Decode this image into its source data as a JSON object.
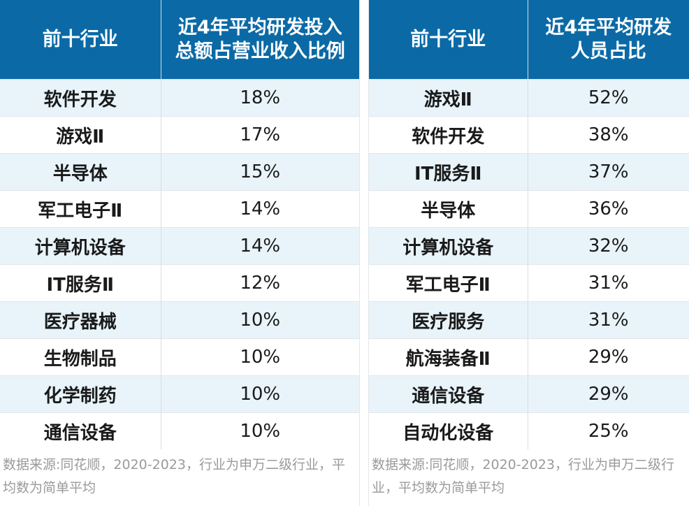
{
  "left_table": {
    "header_col1": "前十行业",
    "header_col2_line1": "近4年平均研发投入",
    "header_col2_line2": "总额占营业收入比例",
    "rows": [
      {
        "industry": "软件开发",
        "value": "18%"
      },
      {
        "industry": "游戏Ⅱ",
        "value": "17%"
      },
      {
        "industry": "半导体",
        "value": "15%"
      },
      {
        "industry": "军工电子Ⅱ",
        "value": "14%"
      },
      {
        "industry": "计算机设备",
        "value": "14%"
      },
      {
        "industry": "IT服务Ⅱ",
        "value": "12%"
      },
      {
        "industry": "医疗器械",
        "value": "10%"
      },
      {
        "industry": "生物制品",
        "value": "10%"
      },
      {
        "industry": "化学制药",
        "value": "10%"
      },
      {
        "industry": "通信设备",
        "value": "10%"
      }
    ],
    "note": "数据来源:同花顺，2020-2023，行业为申万二级行业，平均数为简单平均"
  },
  "right_table": {
    "header_col1": "前十行业",
    "header_col2_line1": "近4年平均研发",
    "header_col2_line2": "人员占比",
    "rows": [
      {
        "industry": "游戏Ⅱ",
        "value": "52%"
      },
      {
        "industry": "软件开发",
        "value": "38%"
      },
      {
        "industry": "IT服务Ⅱ",
        "value": "37%"
      },
      {
        "industry": "半导体",
        "value": "36%"
      },
      {
        "industry": "计算机设备",
        "value": "32%"
      },
      {
        "industry": "军工电子Ⅱ",
        "value": "31%"
      },
      {
        "industry": "医疗服务",
        "value": "31%"
      },
      {
        "industry": "航海装备Ⅱ",
        "value": "29%"
      },
      {
        "industry": "通信设备",
        "value": "29%"
      },
      {
        "industry": "自动化设备",
        "value": "25%"
      }
    ],
    "note": "数据来源:同花顺，2020-2023，行业为申万二级行业，平均数为简单平均"
  }
}
